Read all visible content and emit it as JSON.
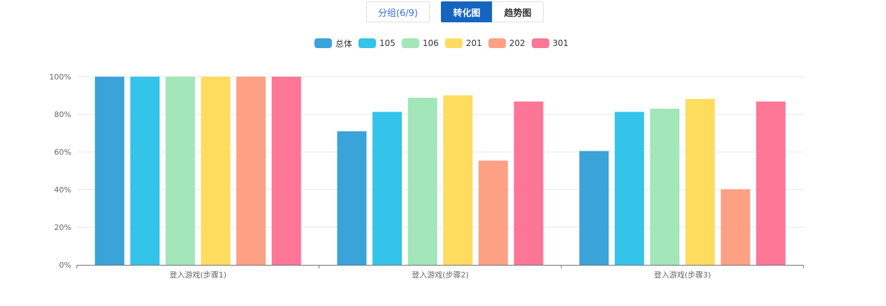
{
  "toolbar": {
    "group_label": "分组(6/9)",
    "conversion_label": "转化图",
    "trend_label": "趋势图"
  },
  "chart_data": {
    "type": "bar",
    "categories": [
      "登入游戏(步骤1)",
      "登入游戏(步骤2)",
      "登入游戏(步骤3)"
    ],
    "series": [
      {
        "name": "总体",
        "color": "#3aa3da",
        "values": [
          100,
          71,
          60.5
        ]
      },
      {
        "name": "105",
        "color": "#34c3e9",
        "values": [
          100,
          81.3,
          81.3
        ]
      },
      {
        "name": "106",
        "color": "#a2e6b9",
        "values": [
          100,
          88.8,
          83
        ]
      },
      {
        "name": "201",
        "color": "#fedc5e",
        "values": [
          100,
          90.1,
          88.2
        ]
      },
      {
        "name": "202",
        "color": "#fea083",
        "values": [
          100,
          55.4,
          40.2
        ]
      },
      {
        "name": "301",
        "color": "#fd7695",
        "values": [
          100,
          86.8,
          86.8
        ]
      }
    ],
    "yticks": [
      "0%",
      "20%",
      "40%",
      "60%",
      "80%",
      "100%"
    ],
    "ylim": [
      0,
      100
    ],
    "grid": true,
    "legend_position": "top-center"
  }
}
